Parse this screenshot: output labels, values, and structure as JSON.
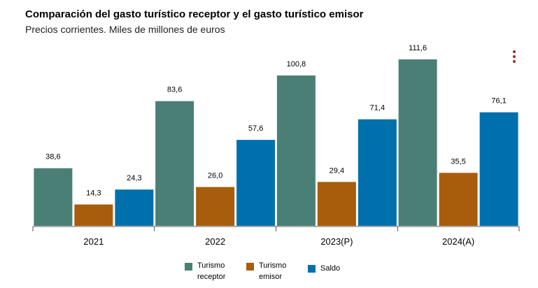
{
  "title": "Comparación del gasto turístico receptor y el gasto turístico emisor",
  "subtitle": "Precios corrientes. Miles de millones de euros",
  "menu_icon": "vertical-ellipsis-icon",
  "chart_data": {
    "type": "bar",
    "categories": [
      "2021",
      "2022",
      "2023(P)",
      "2024(A)"
    ],
    "series": [
      {
        "name": "Turismo receptor",
        "color": "#4a7f76",
        "values": [
          38.6,
          83.6,
          100.8,
          111.6
        ],
        "labels": [
          "38,6",
          "83,6",
          "100,8",
          "111,6"
        ]
      },
      {
        "name": "Turismo emisor",
        "color": "#a85d0c",
        "values": [
          14.3,
          26.0,
          29.4,
          35.5
        ],
        "labels": [
          "14,3",
          "26,0",
          "29,4",
          "35,5"
        ]
      },
      {
        "name": "Saldo",
        "color": "#0070ad",
        "values": [
          24.3,
          57.6,
          71.4,
          76.1
        ],
        "labels": [
          "24,3",
          "57,6",
          "71,4",
          "76,1"
        ]
      }
    ],
    "ylim": [
      0,
      120
    ],
    "grid": false,
    "legend_position": "bottom-center"
  },
  "legend": [
    {
      "line1": "Turismo",
      "line2": "receptor",
      "color": "#4a7f76"
    },
    {
      "line1": "Turismo",
      "line2": "emisor",
      "color": "#a85d0c"
    },
    {
      "line1": "Saldo",
      "line2": "",
      "color": "#0070ad"
    }
  ]
}
